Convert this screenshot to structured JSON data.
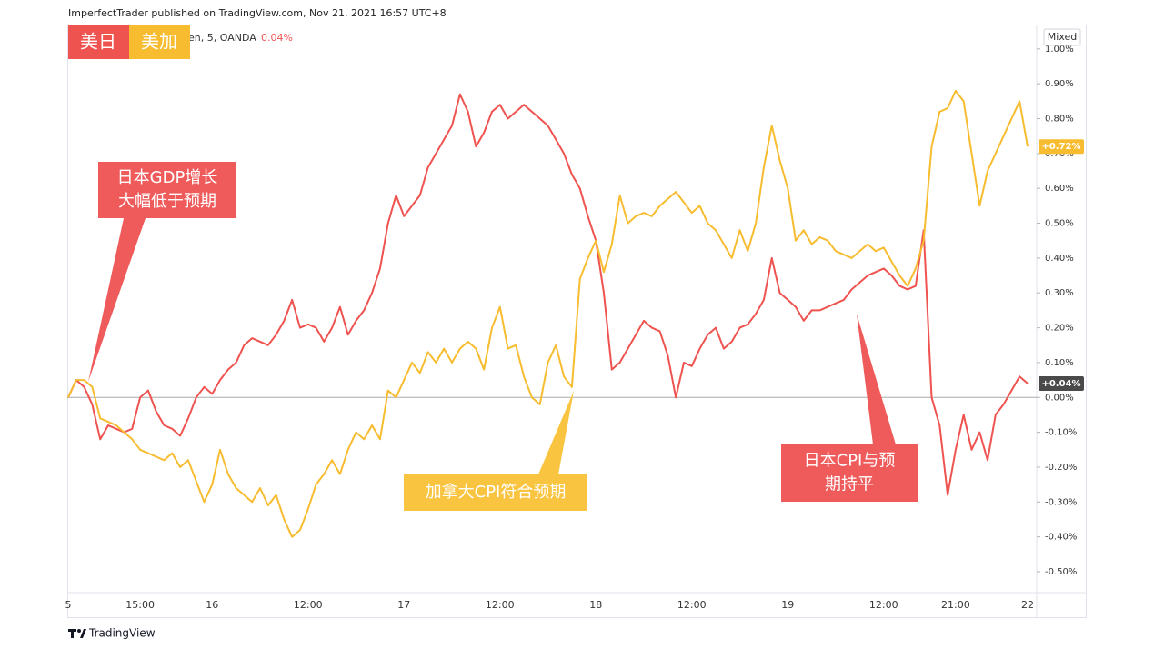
{
  "header": {
    "title": "ImperfectTrader published on TradingView.com, Nov 21, 2021 16:57 UTC+8"
  },
  "chart_data": {
    "type": "line",
    "symbol_text": "en, 5, OANDA",
    "change_text": "0.04%",
    "change_color": "#ef5350",
    "scale_mode": "Mixed",
    "categories": [
      "5",
      null,
      null,
      null,
      null,
      null,
      null,
      null,
      null,
      "15:00",
      null,
      null,
      null,
      null,
      null,
      null,
      null,
      null,
      "16",
      null,
      null,
      null,
      null,
      null,
      null,
      null,
      null,
      null,
      null,
      null,
      "12:00",
      null,
      null,
      null,
      null,
      null,
      null,
      null,
      null,
      null,
      null,
      null,
      "17",
      null,
      null,
      null,
      null,
      null,
      null,
      null,
      null,
      null,
      null,
      null,
      "12:00",
      null,
      null,
      null,
      null,
      null,
      null,
      null,
      null,
      null,
      null,
      null,
      "18",
      null,
      null,
      null,
      null,
      null,
      null,
      null,
      null,
      null,
      null,
      null,
      "12:00",
      null,
      null,
      null,
      null,
      null,
      null,
      null,
      null,
      null,
      null,
      null,
      "19",
      null,
      null,
      null,
      null,
      null,
      null,
      null,
      null,
      null,
      null,
      null,
      "12:00",
      null,
      null,
      null,
      null,
      null,
      null,
      null,
      null,
      "21:00",
      null,
      null,
      null,
      null,
      null,
      null,
      null,
      null,
      "22"
    ],
    "series": [
      {
        "name": "美日",
        "color": "#ef5350",
        "label_color": "#4a4a4a",
        "last_value_label": "+0.04%",
        "values": [
          0.0,
          0.05,
          0.03,
          -0.02,
          -0.12,
          -0.08,
          -0.09,
          -0.1,
          -0.09,
          0.0,
          0.02,
          -0.04,
          -0.08,
          -0.09,
          -0.11,
          -0.06,
          0.0,
          0.03,
          0.01,
          0.05,
          0.08,
          0.1,
          0.15,
          0.17,
          0.16,
          0.15,
          0.18,
          0.22,
          0.28,
          0.2,
          0.21,
          0.2,
          0.16,
          0.2,
          0.26,
          0.18,
          0.22,
          0.25,
          0.3,
          0.37,
          0.5,
          0.58,
          0.52,
          0.55,
          0.58,
          0.66,
          0.7,
          0.74,
          0.78,
          0.87,
          0.82,
          0.72,
          0.76,
          0.82,
          0.84,
          0.8,
          0.82,
          0.84,
          0.82,
          0.8,
          0.78,
          0.74,
          0.7,
          0.64,
          0.6,
          0.52,
          0.45,
          0.3,
          0.08,
          0.1,
          0.14,
          0.18,
          0.22,
          0.2,
          0.19,
          0.12,
          0.0,
          0.1,
          0.09,
          0.14,
          0.18,
          0.2,
          0.14,
          0.16,
          0.2,
          0.21,
          0.24,
          0.28,
          0.4,
          0.3,
          0.28,
          0.26,
          0.22,
          0.25,
          0.25,
          0.26,
          0.27,
          0.28,
          0.31,
          0.33,
          0.35,
          0.36,
          0.37,
          0.35,
          0.32,
          0.31,
          0.32,
          0.48,
          0.0,
          -0.08,
          -0.28,
          -0.15,
          -0.05,
          -0.15,
          -0.1,
          -0.18,
          -0.05,
          -0.02,
          0.02,
          0.06,
          0.04
        ]
      },
      {
        "name": "美加",
        "color": "#f7bc2f",
        "label_color": "#f7bc2f",
        "last_value_label": "+0.72%",
        "values": [
          0.0,
          0.05,
          0.05,
          0.03,
          -0.06,
          -0.07,
          -0.08,
          -0.1,
          -0.12,
          -0.15,
          -0.16,
          -0.17,
          -0.18,
          -0.16,
          -0.2,
          -0.18,
          -0.24,
          -0.3,
          -0.25,
          -0.15,
          -0.22,
          -0.26,
          -0.28,
          -0.3,
          -0.26,
          -0.31,
          -0.28,
          -0.35,
          -0.4,
          -0.38,
          -0.32,
          -0.25,
          -0.22,
          -0.18,
          -0.22,
          -0.15,
          -0.1,
          -0.12,
          -0.08,
          -0.12,
          0.02,
          0.0,
          0.05,
          0.1,
          0.07,
          0.13,
          0.1,
          0.14,
          0.1,
          0.14,
          0.16,
          0.14,
          0.08,
          0.2,
          0.26,
          0.14,
          0.15,
          0.06,
          0.0,
          -0.02,
          0.1,
          0.15,
          0.06,
          0.03,
          0.34,
          0.4,
          0.45,
          0.36,
          0.44,
          0.58,
          0.5,
          0.52,
          0.53,
          0.52,
          0.55,
          0.57,
          0.59,
          0.56,
          0.53,
          0.55,
          0.5,
          0.48,
          0.44,
          0.4,
          0.48,
          0.42,
          0.5,
          0.66,
          0.78,
          0.68,
          0.6,
          0.45,
          0.48,
          0.44,
          0.46,
          0.45,
          0.42,
          0.41,
          0.4,
          0.42,
          0.44,
          0.42,
          0.43,
          0.39,
          0.35,
          0.32,
          0.37,
          0.45,
          0.72,
          0.82,
          0.83,
          0.88,
          0.85,
          0.7,
          0.55,
          0.65,
          0.7,
          0.75,
          0.8,
          0.85,
          0.72
        ]
      }
    ],
    "ylim": [
      -0.56,
      1.07
    ],
    "yticks": [
      {
        "value": 1.0,
        "label": "1.00%"
      },
      {
        "value": 0.9,
        "label": "0.90%"
      },
      {
        "value": 0.8,
        "label": "0.80%"
      },
      {
        "value": 0.7,
        "label": "0.70%"
      },
      {
        "value": 0.6,
        "label": "0.60%"
      },
      {
        "value": 0.5,
        "label": "0.50%"
      },
      {
        "value": 0.4,
        "label": "0.40%"
      },
      {
        "value": 0.3,
        "label": "0.30%"
      },
      {
        "value": 0.2,
        "label": "0.20%"
      },
      {
        "value": 0.1,
        "label": "0.10%"
      },
      {
        "value": 0,
        "label": "0.00%"
      },
      {
        "value": -0.1,
        "label": "-0.10%"
      },
      {
        "value": -0.2,
        "label": "-0.20%"
      },
      {
        "value": -0.3,
        "label": "-0.30%"
      },
      {
        "value": -0.4,
        "label": "-0.40%"
      },
      {
        "value": -0.5,
        "label": "-0.50%"
      }
    ],
    "grid": false,
    "baseline": 0,
    "annotations": [
      {
        "lines": [
          "日本GDP增长",
          "大幅低于预期"
        ],
        "color": "#ef5b5b"
      },
      {
        "lines": [
          "加拿大CPI符合预期"
        ],
        "color": "#f9c440"
      },
      {
        "lines": [
          "日本CPI与预",
          "期持平"
        ],
        "color": "#ef5b5b"
      }
    ]
  },
  "footer": {
    "brand": "TradingView"
  }
}
